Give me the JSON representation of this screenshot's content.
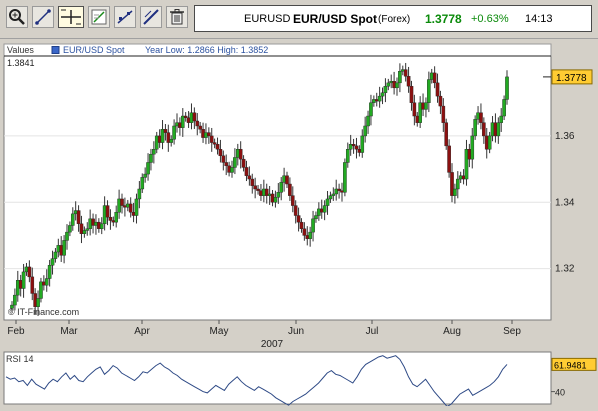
{
  "toolbar": {
    "tools": [
      {
        "name": "zoom-tool-icon"
      },
      {
        "name": "draw-line-tool-icon"
      },
      {
        "name": "crosshair-tool-icon"
      },
      {
        "name": "chart-style-tool-icon"
      },
      {
        "name": "trend-tool-icon"
      },
      {
        "name": "pen-tool-icon"
      },
      {
        "name": "delete-tool-icon"
      }
    ]
  },
  "quote": {
    "symbol": "EURUSD",
    "name": "EUR/USD Spot",
    "market": "(Forex)",
    "last": "1.3778",
    "change": "+0.63%",
    "time": "14:13",
    "up_color": "#0a8a0a"
  },
  "main_legend": {
    "values_label": "Values",
    "series_name": "EUR/USD Spot",
    "stats": "Year Low: 1.2866 High: 1.3852"
  },
  "watermark": "© IT-Finance.com",
  "rsi": {
    "label": "RSI 14",
    "current": "61.9481",
    "tick": "40"
  },
  "colors": {
    "up_candle": "#22aa22",
    "down_candle": "#8b1010",
    "last_price_marker": "#ffcc33",
    "rsi_line": "#2e4a86"
  },
  "chart_data": {
    "type": "candlestick",
    "x_axis_labels": [
      "Feb",
      "Mar",
      "Apr",
      "May",
      "Jun",
      "Jul",
      "Aug",
      "Sep"
    ],
    "year_label": "2007",
    "y_ticks": [
      1.32,
      1.34,
      1.36
    ],
    "y_range": [
      1.3045,
      1.3841
    ],
    "hline_label": "1.3841",
    "last_label": "1.3778",
    "last_price": 1.3778,
    "closes": [
      1.309,
      1.312,
      1.3165,
      1.314,
      1.319,
      1.3205,
      1.3175,
      1.3125,
      1.3085,
      1.311,
      1.316,
      1.315,
      1.317,
      1.321,
      1.323,
      1.325,
      1.327,
      1.324,
      1.3285,
      1.331,
      1.333,
      1.3365,
      1.3375,
      1.3335,
      1.3305,
      1.3315,
      1.332,
      1.335,
      1.333,
      1.334,
      1.332,
      1.3335,
      1.339,
      1.3355,
      1.3345,
      1.334,
      1.337,
      1.341,
      1.339,
      1.3385,
      1.3395,
      1.337,
      1.336,
      1.341,
      1.344,
      1.3475,
      1.3485,
      1.352,
      1.3545,
      1.356,
      1.36,
      1.358,
      1.362,
      1.361,
      1.358,
      1.359,
      1.363,
      1.364,
      1.3625,
      1.366,
      1.3655,
      1.364,
      1.367,
      1.3645,
      1.363,
      1.362,
      1.3595,
      1.361,
      1.36,
      1.358,
      1.3575,
      1.356,
      1.354,
      1.352,
      1.351,
      1.349,
      1.3505,
      1.3535,
      1.356,
      1.353,
      1.3505,
      1.348,
      1.347,
      1.345,
      1.344,
      1.3435,
      1.342,
      1.344,
      1.342,
      1.3425,
      1.34,
      1.3415,
      1.343,
      1.346,
      1.348,
      1.3455,
      1.342,
      1.339,
      1.336,
      1.334,
      1.332,
      1.33,
      1.329,
      1.331,
      1.335,
      1.336,
      1.338,
      1.337,
      1.339,
      1.341,
      1.342,
      1.3425,
      1.344,
      1.3435,
      1.343,
      1.352,
      1.356,
      1.3575,
      1.357,
      1.356,
      1.355,
      1.36,
      1.363,
      1.366,
      1.37,
      1.371,
      1.3705,
      1.372,
      1.373,
      1.375,
      1.376,
      1.3765,
      1.3745,
      1.376,
      1.3795,
      1.38,
      1.378,
      1.375,
      1.37,
      1.366,
      1.364,
      1.37,
      1.368,
      1.37,
      1.377,
      1.379,
      1.376,
      1.372,
      1.369,
      1.364,
      1.357,
      1.349,
      1.342,
      1.344,
      1.347,
      1.348,
      1.347,
      1.356,
      1.353,
      1.36,
      1.365,
      1.367,
      1.364,
      1.36,
      1.356,
      1.36,
      1.364,
      1.36,
      1.364,
      1.366,
      1.371,
      1.3778
    ],
    "rsi_values": [
      52,
      50,
      51,
      48,
      49,
      45,
      50,
      46,
      44,
      42,
      47,
      50,
      48,
      52,
      55,
      50,
      53,
      49,
      48,
      52,
      55,
      58,
      60,
      54,
      57,
      61,
      59,
      55,
      53,
      51,
      49,
      52,
      56,
      55,
      58,
      61,
      63,
      60,
      58,
      55,
      53,
      50,
      48,
      46,
      44,
      42,
      40,
      39,
      42,
      45,
      43,
      41,
      46,
      49,
      52,
      48,
      45,
      43,
      41,
      44,
      42,
      40,
      38,
      35,
      33,
      31,
      29,
      32,
      34,
      36,
      38,
      41,
      44,
      47,
      51,
      55,
      57,
      54,
      53,
      51,
      49,
      47,
      52,
      58,
      62,
      64,
      66,
      68,
      69,
      67,
      68,
      69,
      66,
      60,
      52,
      46,
      44,
      47,
      50,
      45,
      40,
      36,
      32,
      28,
      30,
      34,
      38,
      40,
      42,
      37,
      39,
      41,
      43,
      45,
      48,
      52,
      58,
      62
    ],
    "rsi_range": [
      30,
      72
    ]
  }
}
